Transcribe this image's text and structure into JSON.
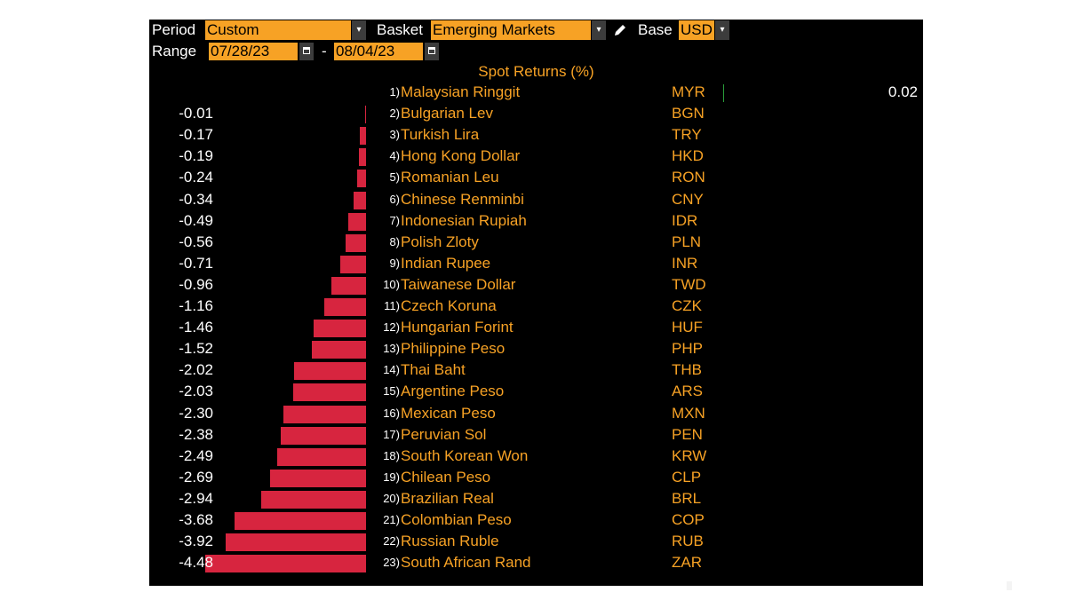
{
  "controls": {
    "period_label": "Period",
    "period_value": "Custom",
    "basket_label": "Basket",
    "basket_value": "Emerging Markets",
    "base_label": "Base",
    "base_value": "USD",
    "range_label": "Range",
    "start_date": "07/28/23",
    "date_separator": "-",
    "end_date": "08/04/23",
    "dropdown_glyph": "▾",
    "edit_icon": "pencil-icon"
  },
  "colors": {
    "background": "#000000",
    "accent": "#f7a225",
    "negative_bar": "#d7253f",
    "positive_bar": "#2a9d3a"
  },
  "chart_data": {
    "type": "bar",
    "orientation": "horizontal",
    "title": "Spot Returns (%)",
    "xlim": [
      -4.48,
      0.02
    ],
    "rows": [
      {
        "rank": "1)",
        "name": "Malaysian Ringgit",
        "code": "MYR",
        "value": 0.02,
        "label": "0.02"
      },
      {
        "rank": "2)",
        "name": "Bulgarian Lev",
        "code": "BGN",
        "value": -0.01,
        "label": "-0.01"
      },
      {
        "rank": "3)",
        "name": "Turkish Lira",
        "code": "TRY",
        "value": -0.17,
        "label": "-0.17"
      },
      {
        "rank": "4)",
        "name": "Hong Kong Dollar",
        "code": "HKD",
        "value": -0.19,
        "label": "-0.19"
      },
      {
        "rank": "5)",
        "name": "Romanian Leu",
        "code": "RON",
        "value": -0.24,
        "label": "-0.24"
      },
      {
        "rank": "6)",
        "name": "Chinese Renminbi",
        "code": "CNY",
        "value": -0.34,
        "label": "-0.34"
      },
      {
        "rank": "7)",
        "name": "Indonesian Rupiah",
        "code": "IDR",
        "value": -0.49,
        "label": "-0.49"
      },
      {
        "rank": "8)",
        "name": "Polish Zloty",
        "code": "PLN",
        "value": -0.56,
        "label": "-0.56"
      },
      {
        "rank": "9)",
        "name": "Indian Rupee",
        "code": "INR",
        "value": -0.71,
        "label": "-0.71"
      },
      {
        "rank": "10)",
        "name": "Taiwanese Dollar",
        "code": "TWD",
        "value": -0.96,
        "label": "-0.96"
      },
      {
        "rank": "11)",
        "name": "Czech Koruna",
        "code": "CZK",
        "value": -1.16,
        "label": "-1.16"
      },
      {
        "rank": "12)",
        "name": "Hungarian Forint",
        "code": "HUF",
        "value": -1.46,
        "label": "-1.46"
      },
      {
        "rank": "13)",
        "name": "Philippine Peso",
        "code": "PHP",
        "value": -1.52,
        "label": "-1.52"
      },
      {
        "rank": "14)",
        "name": "Thai Baht",
        "code": "THB",
        "value": -2.02,
        "label": "-2.02"
      },
      {
        "rank": "15)",
        "name": "Argentine Peso",
        "code": "ARS",
        "value": -2.03,
        "label": "-2.03"
      },
      {
        "rank": "16)",
        "name": "Mexican Peso",
        "code": "MXN",
        "value": -2.3,
        "label": "-2.30"
      },
      {
        "rank": "17)",
        "name": "Peruvian Sol",
        "code": "PEN",
        "value": -2.38,
        "label": "-2.38"
      },
      {
        "rank": "18)",
        "name": "South Korean Won",
        "code": "KRW",
        "value": -2.49,
        "label": "-2.49"
      },
      {
        "rank": "19)",
        "name": "Chilean Peso",
        "code": "CLP",
        "value": -2.69,
        "label": "-2.69"
      },
      {
        "rank": "20)",
        "name": "Brazilian Real",
        "code": "BRL",
        "value": -2.94,
        "label": "-2.94"
      },
      {
        "rank": "21)",
        "name": "Colombian Peso",
        "code": "COP",
        "value": -3.68,
        "label": "-3.68"
      },
      {
        "rank": "22)",
        "name": "Russian Ruble",
        "code": "RUB",
        "value": -3.92,
        "label": "-3.92"
      },
      {
        "rank": "23)",
        "name": "South African Rand",
        "code": "ZAR",
        "value": -4.48,
        "label": "-4.48"
      }
    ]
  }
}
